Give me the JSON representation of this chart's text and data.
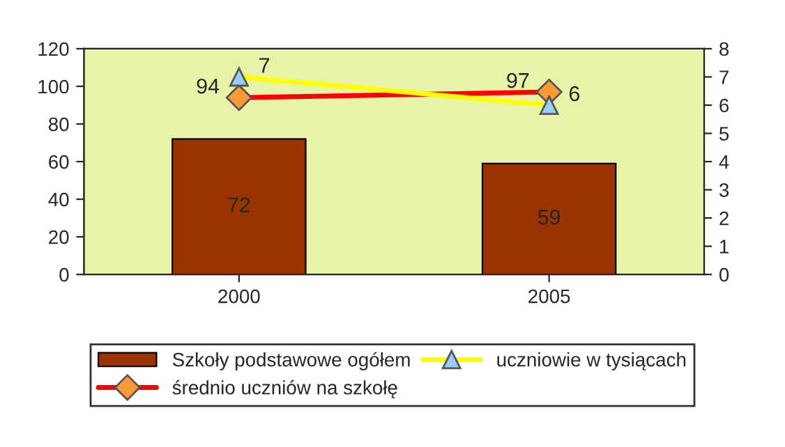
{
  "chart_data": {
    "type": "bar",
    "categories": [
      "2000",
      "2005"
    ],
    "series": [
      {
        "name": "Szkoły podstawowe ogółem",
        "color": "#993300",
        "values": [
          72,
          59
        ]
      },
      {
        "name": "średnio uczniów na szkołę",
        "type": "line",
        "color": "#ff0000",
        "marker": "diamond",
        "values": [
          94,
          97
        ]
      },
      {
        "name": "uczniowie w tysiącach",
        "type": "line",
        "color": "#ffff00",
        "marker": "triangle",
        "axis": "y2",
        "values": [
          7,
          6
        ]
      }
    ],
    "ylim": [
      0,
      120
    ],
    "yticks": [
      0,
      20,
      40,
      60,
      80,
      100,
      120
    ],
    "y2lim": [
      0,
      8
    ],
    "y2ticks": [
      0,
      1,
      2,
      3,
      4,
      5,
      6,
      7,
      8
    ],
    "data_labels": true,
    "legend": "bottom",
    "grid": false
  }
}
